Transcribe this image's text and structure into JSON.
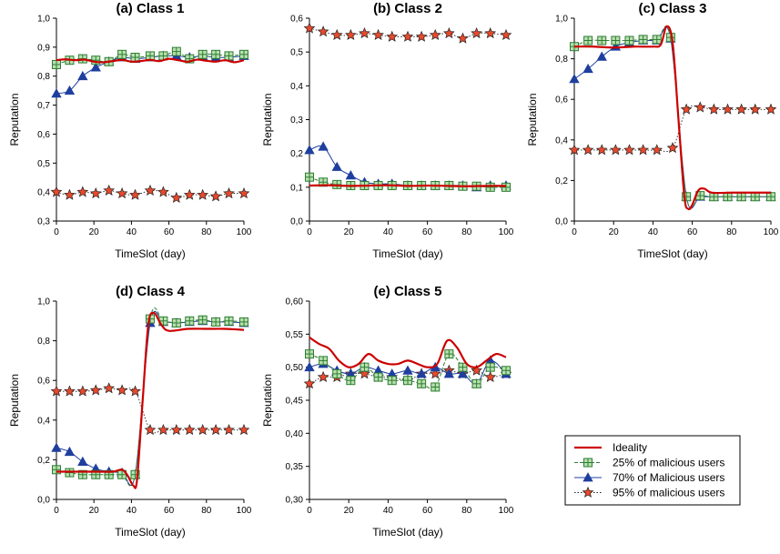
{
  "colors": {
    "ideality": "#cc0000",
    "malicious25": "#2e7d32",
    "malicious25_fill": "#b8e0b0",
    "malicious70": "#1f3f9f",
    "malicious70_fill": "#1f3f9f",
    "malicious95": "#222222",
    "malicious95_fill": "#e8492c",
    "axis": "#000000"
  },
  "legend": {
    "placement": "bottom-right",
    "entries": [
      {
        "key": "ideality",
        "label": "Ideality",
        "marker": "none"
      },
      {
        "key": "malicious25",
        "label": "25% of malicious users",
        "marker": "square-plus-icon"
      },
      {
        "key": "malicious70",
        "label": "70% of Malicious users",
        "marker": "triangle-icon"
      },
      {
        "key": "malicious95",
        "label": "95% of malicious users",
        "marker": "star-icon"
      }
    ]
  },
  "chart_data": [
    {
      "type": "line",
      "title": "(a) Class 1",
      "xlabel": "TimeSlot (day)",
      "ylabel": "Reputation",
      "xlim": [
        0,
        100
      ],
      "ylim": [
        0.3,
        1.0
      ],
      "xticks": [
        "0",
        "20",
        "40",
        "60",
        "80",
        "100"
      ],
      "yticks": [
        "0,3",
        "0,4",
        "0,5",
        "0,6",
        "0,7",
        "0,8",
        "0,9",
        "1,0"
      ],
      "series": [
        {
          "name": "Ideality",
          "key": "ideality",
          "x": [
            0,
            5,
            10,
            15,
            20,
            25,
            30,
            35,
            40,
            45,
            50,
            55,
            60,
            65,
            70,
            75,
            80,
            85,
            90,
            95,
            100
          ],
          "y": [
            0.855,
            0.858,
            0.855,
            0.857,
            0.85,
            0.848,
            0.852,
            0.856,
            0.85,
            0.852,
            0.856,
            0.852,
            0.86,
            0.855,
            0.85,
            0.857,
            0.853,
            0.85,
            0.855,
            0.848,
            0.855
          ]
        },
        {
          "name": "25% of malicious users",
          "key": "malicious25",
          "x": [
            0,
            7,
            14,
            21,
            28,
            35,
            42,
            50,
            57,
            64,
            71,
            78,
            85,
            92,
            100
          ],
          "y": [
            0.84,
            0.855,
            0.86,
            0.855,
            0.85,
            0.875,
            0.865,
            0.87,
            0.87,
            0.885,
            0.86,
            0.875,
            0.875,
            0.87,
            0.875
          ]
        },
        {
          "name": "70% of Malicious users",
          "key": "malicious70",
          "x": [
            0,
            7,
            14,
            21,
            28,
            35,
            42,
            50,
            57,
            64,
            71,
            78,
            85,
            92,
            100
          ],
          "y": [
            0.74,
            0.75,
            0.8,
            0.83,
            0.85,
            0.865,
            0.86,
            0.865,
            0.87,
            0.87,
            0.865,
            0.87,
            0.865,
            0.865,
            0.87
          ]
        },
        {
          "name": "95% of malicious users",
          "key": "malicious95",
          "x": [
            0,
            7,
            14,
            21,
            28,
            35,
            42,
            50,
            57,
            64,
            71,
            78,
            85,
            92,
            100
          ],
          "y": [
            0.4,
            0.39,
            0.4,
            0.395,
            0.405,
            0.395,
            0.39,
            0.405,
            0.4,
            0.38,
            0.39,
            0.39,
            0.385,
            0.395,
            0.395
          ]
        }
      ]
    },
    {
      "type": "line",
      "title": "(b) Class 2",
      "xlabel": "TimeSlot (day)",
      "ylabel": "Reputation",
      "xlim": [
        0,
        100
      ],
      "ylim": [
        0.0,
        0.6
      ],
      "xticks": [
        "0",
        "20",
        "40",
        "60",
        "80",
        "100"
      ],
      "yticks": [
        "0,0",
        "0,1",
        "0,2",
        "0,3",
        "0,4",
        "0,5",
        "0,6"
      ],
      "series": [
        {
          "name": "Ideality",
          "key": "ideality",
          "x": [
            0,
            10,
            20,
            30,
            40,
            50,
            60,
            70,
            80,
            90,
            100
          ],
          "y": [
            0.105,
            0.106,
            0.104,
            0.105,
            0.106,
            0.104,
            0.105,
            0.104,
            0.103,
            0.104,
            0.104
          ]
        },
        {
          "name": "25% of malicious users",
          "key": "malicious25",
          "x": [
            0,
            7,
            14,
            21,
            28,
            35,
            42,
            50,
            57,
            64,
            71,
            78,
            85,
            92,
            100
          ],
          "y": [
            0.13,
            0.115,
            0.108,
            0.105,
            0.105,
            0.105,
            0.105,
            0.105,
            0.105,
            0.105,
            0.105,
            0.103,
            0.103,
            0.1,
            0.1
          ]
        },
        {
          "name": "70% of Malicious users",
          "key": "malicious70",
          "x": [
            0,
            7,
            14,
            21,
            28,
            35,
            42,
            50,
            57,
            64,
            71,
            78,
            85,
            92,
            100
          ],
          "y": [
            0.21,
            0.22,
            0.16,
            0.135,
            0.115,
            0.11,
            0.11,
            0.105,
            0.105,
            0.105,
            0.105,
            0.105,
            0.1,
            0.105,
            0.105
          ]
        },
        {
          "name": "95% of malicious users",
          "key": "malicious95",
          "x": [
            0,
            7,
            14,
            21,
            28,
            35,
            42,
            50,
            57,
            64,
            71,
            78,
            85,
            92,
            100
          ],
          "y": [
            0.57,
            0.56,
            0.55,
            0.55,
            0.555,
            0.55,
            0.545,
            0.545,
            0.545,
            0.55,
            0.555,
            0.54,
            0.555,
            0.555,
            0.55
          ]
        }
      ]
    },
    {
      "type": "line",
      "title": "(c) Class 3",
      "xlabel": "TimeSlot (day)",
      "ylabel": "Reputation",
      "xlim": [
        0,
        100
      ],
      "ylim": [
        0.0,
        1.0
      ],
      "xticks": [
        "0",
        "20",
        "40",
        "60",
        "80",
        "100"
      ],
      "yticks": [
        "0,0",
        "0,2",
        "0,4",
        "0,6",
        "0,8",
        "1,0"
      ],
      "series": [
        {
          "name": "Ideality",
          "key": "ideality",
          "x": [
            0,
            10,
            20,
            30,
            40,
            44,
            47,
            50,
            53,
            56,
            58,
            60,
            63,
            66,
            70,
            80,
            90,
            100
          ],
          "y": [
            0.86,
            0.86,
            0.855,
            0.86,
            0.86,
            0.87,
            0.96,
            0.88,
            0.5,
            0.12,
            0.06,
            0.08,
            0.15,
            0.16,
            0.14,
            0.14,
            0.14,
            0.14
          ]
        },
        {
          "name": "25% of malicious users",
          "key": "malicious25",
          "x": [
            0,
            7,
            14,
            21,
            28,
            35,
            42,
            49,
            57,
            64,
            71,
            78,
            85,
            92,
            100
          ],
          "y": [
            0.86,
            0.89,
            0.89,
            0.89,
            0.89,
            0.895,
            0.895,
            0.905,
            0.12,
            0.125,
            0.12,
            0.12,
            0.12,
            0.12,
            0.12
          ]
        },
        {
          "name": "70% of Malicious users",
          "key": "malicious70",
          "x": [
            0,
            7,
            14,
            21,
            28,
            35,
            42,
            49,
            57,
            64,
            71,
            78,
            85,
            92,
            100
          ],
          "y": [
            0.7,
            0.75,
            0.81,
            0.86,
            0.88,
            0.89,
            0.89,
            0.9,
            0.12,
            0.12,
            0.12,
            0.12,
            0.12,
            0.12,
            0.12
          ]
        },
        {
          "name": "95% of malicious users",
          "key": "malicious95",
          "x": [
            0,
            7,
            14,
            21,
            28,
            35,
            42,
            50,
            57,
            64,
            71,
            78,
            85,
            92,
            100
          ],
          "y": [
            0.35,
            0.35,
            0.35,
            0.35,
            0.35,
            0.35,
            0.35,
            0.36,
            0.55,
            0.56,
            0.55,
            0.55,
            0.55,
            0.55,
            0.55
          ]
        }
      ]
    },
    {
      "type": "line",
      "title": "(d) Class 4",
      "xlabel": "TimeSlot (day)",
      "ylabel": "Reputation",
      "xlim": [
        0,
        100
      ],
      "ylim": [
        0.0,
        1.0
      ],
      "xticks": [
        "0",
        "20",
        "40",
        "60",
        "80",
        "100"
      ],
      "yticks": [
        "0,0",
        "0,2",
        "0,4",
        "0,6",
        "0,8",
        "1,0"
      ],
      "series": [
        {
          "name": "Ideality",
          "key": "ideality",
          "x": [
            0,
            10,
            20,
            30,
            35,
            38,
            41,
            43,
            46,
            49,
            52,
            56,
            60,
            70,
            80,
            90,
            100
          ],
          "y": [
            0.14,
            0.14,
            0.14,
            0.14,
            0.15,
            0.12,
            0.07,
            0.1,
            0.5,
            0.88,
            0.94,
            0.88,
            0.85,
            0.86,
            0.86,
            0.86,
            0.855
          ]
        },
        {
          "name": "25% of malicious users",
          "key": "malicious25",
          "x": [
            0,
            7,
            14,
            21,
            28,
            35,
            42,
            50,
            57,
            64,
            71,
            78,
            85,
            92,
            100
          ],
          "y": [
            0.15,
            0.135,
            0.125,
            0.125,
            0.125,
            0.125,
            0.125,
            0.91,
            0.9,
            0.89,
            0.9,
            0.905,
            0.895,
            0.9,
            0.895
          ]
        },
        {
          "name": "70% of Malicious users",
          "key": "malicious70",
          "x": [
            0,
            7,
            14,
            21,
            28,
            35,
            42,
            50,
            57,
            64,
            71,
            78,
            85,
            92,
            100
          ],
          "y": [
            0.26,
            0.24,
            0.19,
            0.155,
            0.14,
            0.135,
            0.125,
            0.89,
            0.895,
            0.89,
            0.895,
            0.9,
            0.895,
            0.895,
            0.89
          ]
        },
        {
          "name": "95% of malicious users",
          "key": "malicious95",
          "x": [
            0,
            7,
            14,
            21,
            28,
            35,
            42,
            50,
            57,
            64,
            71,
            78,
            85,
            92,
            100
          ],
          "y": [
            0.545,
            0.545,
            0.545,
            0.55,
            0.56,
            0.55,
            0.545,
            0.35,
            0.35,
            0.35,
            0.35,
            0.35,
            0.35,
            0.35,
            0.35
          ]
        }
      ]
    },
    {
      "type": "line",
      "title": "(e) Class 5",
      "xlabel": "TimeSlot (day)",
      "ylabel": "Reputation",
      "xlim": [
        0,
        100
      ],
      "ylim": [
        0.3,
        0.6
      ],
      "xticks": [
        "0",
        "20",
        "40",
        "60",
        "80",
        "100"
      ],
      "yticks": [
        "0,30",
        "0,35",
        "0,40",
        "0,45",
        "0,50",
        "0,55",
        "0,60"
      ],
      "series": [
        {
          "name": "Ideality",
          "key": "ideality",
          "x": [
            0,
            5,
            10,
            15,
            20,
            25,
            30,
            35,
            40,
            45,
            50,
            55,
            60,
            65,
            70,
            75,
            80,
            85,
            90,
            95,
            100
          ],
          "y": [
            0.545,
            0.535,
            0.528,
            0.51,
            0.5,
            0.505,
            0.52,
            0.51,
            0.505,
            0.505,
            0.51,
            0.505,
            0.5,
            0.505,
            0.54,
            0.53,
            0.505,
            0.5,
            0.51,
            0.52,
            0.515
          ]
        },
        {
          "name": "25% of malicious users",
          "key": "malicious25",
          "x": [
            0,
            7,
            14,
            21,
            28,
            35,
            42,
            50,
            57,
            64,
            71,
            78,
            85,
            92,
            100
          ],
          "y": [
            0.52,
            0.51,
            0.49,
            0.48,
            0.5,
            0.485,
            0.48,
            0.48,
            0.475,
            0.47,
            0.52,
            0.5,
            0.475,
            0.5,
            0.495
          ]
        },
        {
          "name": "70% of Malicious users",
          "key": "malicious70",
          "x": [
            0,
            7,
            14,
            21,
            28,
            35,
            42,
            50,
            57,
            64,
            71,
            78,
            85,
            92,
            100
          ],
          "y": [
            0.5,
            0.505,
            0.495,
            0.49,
            0.5,
            0.495,
            0.49,
            0.495,
            0.49,
            0.5,
            0.49,
            0.49,
            0.475,
            0.51,
            0.49
          ]
        },
        {
          "name": "95% of malicious users",
          "key": "malicious95",
          "x": [
            0,
            7,
            14,
            21,
            28,
            35,
            42,
            50,
            57,
            64,
            71,
            78,
            85,
            92,
            100
          ],
          "y": [
            0.475,
            0.485,
            0.485,
            0.49,
            0.49,
            0.485,
            0.485,
            0.48,
            0.49,
            0.49,
            0.495,
            0.49,
            0.495,
            0.485,
            0.49
          ]
        }
      ]
    }
  ]
}
